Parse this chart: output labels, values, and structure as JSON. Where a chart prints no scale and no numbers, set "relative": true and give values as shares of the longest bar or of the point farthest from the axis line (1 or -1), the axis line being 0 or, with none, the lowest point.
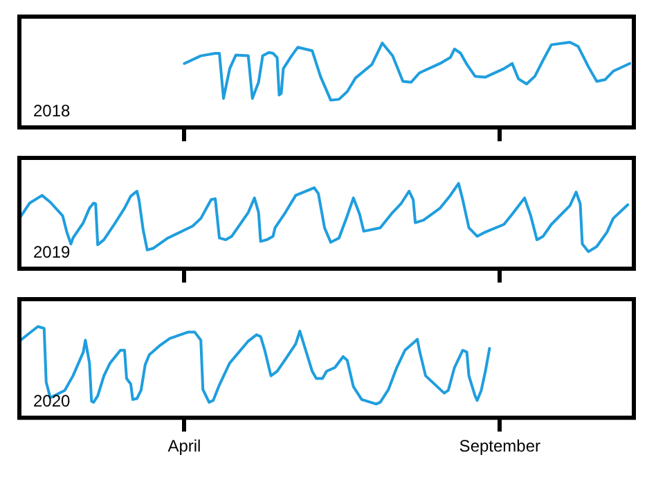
{
  "chart_data": [
    {
      "type": "line",
      "relative": true,
      "color": "#1f9ede",
      "marker": "none",
      "tick_labels": false,
      "xlim": [
        "--01-11",
        "--11-05"
      ],
      "xticks": [
        {
          "value": "--04-01",
          "label": null
        },
        {
          "value": "--09-01",
          "label": null
        }
      ],
      "annotations": [
        "2018"
      ],
      "x": [
        "--04-01",
        "--04-09",
        "--04-16",
        "--04-18",
        "--04-20",
        "--04-23",
        "--04-26",
        "--05-02",
        "--05-04",
        "--05-07",
        "--05-09",
        "--05-12",
        "--05-14",
        "--05-16",
        "--05-17",
        "--05-18",
        "--05-19",
        "--05-23",
        "--05-26",
        "--06-02",
        "--06-06",
        "--06-11",
        "--06-15",
        "--06-19",
        "--06-23",
        "--07-01",
        "--07-06",
        "--07-11",
        "--07-16",
        "--07-20",
        "--07-24",
        "--08-03",
        "--08-08",
        "--08-10",
        "--08-13",
        "--08-16",
        "--08-20",
        "--08-25",
        "--09-03",
        "--09-07",
        "--09-10",
        "--09-14",
        "--09-18",
        "--09-22",
        "--09-26",
        "--10-05",
        "--10-09",
        "--10-14",
        "--10-18",
        "--10-22",
        "--10-26",
        "--11-03"
      ],
      "values": [
        0.75,
        0.84,
        0.87,
        0.87,
        0.34,
        0.69,
        0.85,
        0.84,
        0.34,
        0.53,
        0.84,
        0.88,
        0.87,
        0.82,
        0.38,
        0.4,
        0.69,
        0.84,
        0.94,
        0.9,
        0.6,
        0.32,
        0.33,
        0.42,
        0.58,
        0.74,
        0.99,
        0.84,
        0.54,
        0.53,
        0.64,
        0.75,
        0.82,
        0.92,
        0.87,
        0.74,
        0.6,
        0.59,
        0.69,
        0.75,
        0.57,
        0.51,
        0.6,
        0.79,
        0.97,
        1,
        0.95,
        0.71,
        0.54,
        0.56,
        0.66,
        0.75
      ]
    },
    {
      "type": "line",
      "relative": true,
      "color": "#1f9ede",
      "marker": "none",
      "tick_labels": false,
      "xlim": [
        "--01-11",
        "--11-05"
      ],
      "xticks": [
        {
          "value": "--04-01",
          "label": null
        },
        {
          "value": "--09-01",
          "label": null
        }
      ],
      "annotations": [
        "2019"
      ],
      "x": [
        "--01-11",
        "--01-16",
        "--01-22",
        "--01-26",
        "--02-01",
        "--02-03",
        "--02-05",
        "--02-06",
        "--02-11",
        "--02-14",
        "--02-16",
        "--02-17",
        "--02-18",
        "--02-21",
        "--02-26",
        "--03-03",
        "--03-06",
        "--03-09",
        "--03-10",
        "--03-12",
        "--03-14",
        "--03-17",
        "--03-24",
        "--04-05",
        "--04-09",
        "--04-14",
        "--04-16",
        "--04-18",
        "--04-21",
        "--04-24",
        "--05-02",
        "--05-05",
        "--05-07",
        "--05-08",
        "--05-11",
        "--05-14",
        "--05-15",
        "--05-20",
        "--05-25",
        "--06-03",
        "--06-05",
        "--06-08",
        "--06-11",
        "--06-15",
        "--06-19",
        "--06-22",
        "--06-25",
        "--06-27",
        "--07-05",
        "--07-11",
        "--07-15",
        "--07-19",
        "--07-21",
        "--07-22",
        "--07-26",
        "--08-03",
        "--08-08",
        "--08-12",
        "--08-14",
        "--08-17",
        "--08-21",
        "--08-25",
        "--09-03",
        "--09-07",
        "--09-13",
        "--09-16",
        "--09-19",
        "--09-22",
        "--09-26",
        "--10-05",
        "--10-08",
        "--10-10",
        "--10-11",
        "--10-14",
        "--10-18",
        "--10-23",
        "--10-26",
        "--11-02"
      ],
      "values": [
        0.59,
        0.77,
        0.86,
        0.78,
        0.62,
        0.43,
        0.29,
        0.36,
        0.54,
        0.71,
        0.77,
        0.76,
        0.28,
        0.34,
        0.52,
        0.71,
        0.85,
        0.91,
        0.81,
        0.46,
        0.22,
        0.24,
        0.36,
        0.5,
        0.59,
        0.81,
        0.82,
        0.36,
        0.34,
        0.38,
        0.66,
        0.83,
        0.66,
        0.32,
        0.34,
        0.38,
        0.48,
        0.66,
        0.86,
        0.95,
        0.88,
        0.48,
        0.31,
        0.36,
        0.62,
        0.83,
        0.64,
        0.44,
        0.48,
        0.66,
        0.76,
        0.91,
        0.81,
        0.54,
        0.57,
        0.71,
        0.86,
        1,
        0.81,
        0.48,
        0.38,
        0.43,
        0.52,
        0.64,
        0.83,
        0.62,
        0.34,
        0.38,
        0.52,
        0.74,
        0.9,
        0.76,
        0.29,
        0.2,
        0.26,
        0.43,
        0.59,
        0.75
      ]
    },
    {
      "type": "line",
      "relative": true,
      "color": "#1f9ede",
      "marker": "none",
      "tick_labels": "x",
      "xlim": [
        "--01-11",
        "--11-05"
      ],
      "xticks": [
        {
          "value": "--04-01",
          "label": "April"
        },
        {
          "value": "--09-01",
          "label": "September"
        }
      ],
      "annotations": [
        "2020"
      ],
      "x": [
        "--01-11",
        "--01-16",
        "--01-20",
        "--01-23",
        "--01-24",
        "--01-26",
        "--02-02",
        "--02-06",
        "--02-11",
        "--02-12",
        "--02-14",
        "--02-15",
        "--02-16",
        "--02-18",
        "--02-21",
        "--02-24",
        "--03-01",
        "--03-03",
        "--03-04",
        "--03-06",
        "--03-07",
        "--03-09",
        "--03-11",
        "--03-13",
        "--03-15",
        "--03-20",
        "--03-25",
        "--04-03",
        "--04-06",
        "--04-09",
        "--04-10",
        "--04-13",
        "--04-15",
        "--04-18",
        "--04-23",
        "--05-02",
        "--05-06",
        "--05-08",
        "--05-10",
        "--05-13",
        "--05-16",
        "--05-20",
        "--05-25",
        "--05-27",
        "--06-02",
        "--06-04",
        "--06-07",
        "--06-09",
        "--06-13",
        "--06-17",
        "--06-19",
        "--06-22",
        "--06-26",
        "--07-03",
        "--07-05",
        "--07-09",
        "--07-13",
        "--07-17",
        "--07-23",
        "--07-24",
        "--07-27",
        "--08-05",
        "--08-07",
        "--08-10",
        "--08-14",
        "--08-16",
        "--08-17",
        "--08-20",
        "--08-21",
        "--08-23",
        "--08-25",
        "--08-27"
      ],
      "values": [
        0.84,
        0.93,
        1,
        0.98,
        0.39,
        0.22,
        0.3,
        0.46,
        0.72,
        0.85,
        0.6,
        0.18,
        0.17,
        0.24,
        0.46,
        0.6,
        0.74,
        0.74,
        0.43,
        0.37,
        0.2,
        0.21,
        0.3,
        0.58,
        0.69,
        0.79,
        0.87,
        0.94,
        0.94,
        0.85,
        0.31,
        0.17,
        0.19,
        0.36,
        0.6,
        0.84,
        0.91,
        0.89,
        0.74,
        0.46,
        0.51,
        0.64,
        0.81,
        0.95,
        0.51,
        0.43,
        0.43,
        0.51,
        0.55,
        0.67,
        0.63,
        0.34,
        0.2,
        0.15,
        0.17,
        0.31,
        0.55,
        0.74,
        0.86,
        0.74,
        0.46,
        0.27,
        0.3,
        0.55,
        0.74,
        0.72,
        0.46,
        0.24,
        0.19,
        0.3,
        0.51,
        0.76
      ]
    }
  ]
}
